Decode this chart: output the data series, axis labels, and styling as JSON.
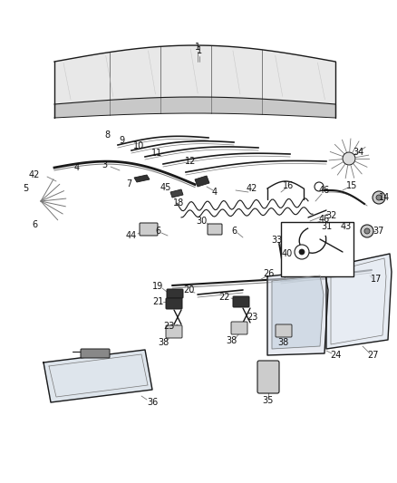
{
  "bg_color": "#ffffff",
  "fig_width": 4.38,
  "fig_height": 5.33,
  "dpi": 100,
  "lc": "#1a1a1a",
  "gray": "#777777",
  "lgray": "#bbbbbb",
  "fill_light": "#e0e0e0",
  "fill_glass": "#d0d5dd"
}
